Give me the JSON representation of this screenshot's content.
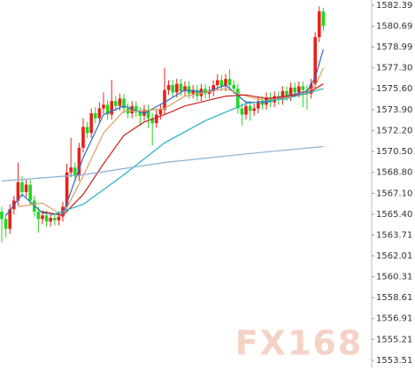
{
  "chart_data": {
    "type": "candlestick",
    "watermark": "FX168",
    "up_color": "#e8201a",
    "down_color": "#21d821",
    "xlim": [
      -0.43,
      90.87
    ],
    "ylim": [
      1552.93,
      1582.82
    ],
    "yticks": [
      1582.39,
      1580.69,
      1578.99,
      {
        "value": 1577.3,
        "label": "1577.30"
      },
      {
        "value": 1575.6,
        "label": "1575.60"
      },
      {
        "value": 1573.9,
        "label": "1573.90"
      },
      {
        "value": 1572.2,
        "label": "1572.20"
      },
      {
        "value": 1570.5,
        "label": "1570.50"
      },
      {
        "value": 1568.8,
        "label": "1568.80"
      },
      {
        "value": 1567.1,
        "label": "1567.10"
      },
      {
        "value": 1565.4,
        "label": "1565.40"
      },
      1563.71,
      1562.01,
      1560.31,
      1558.61,
      1556.91,
      1555.21,
      1553.51
    ],
    "open": [
      1565.6,
      1565.0,
      1564.2,
      1565.8,
      1566.5,
      1568.0,
      1567.2,
      1567.8,
      1566.5,
      1565.6,
      1565.0,
      1565.3,
      1564.8,
      1565.1,
      1564.9,
      1565.2,
      1566.0,
      1568.8,
      1569.2,
      1568.5,
      1570.8,
      1572.5,
      1572.0,
      1573.6,
      1573.2,
      1574.0,
      1574.3,
      1573.5,
      1574.6,
      1574.2,
      1574.8,
      1574.0,
      1573.6,
      1574.2,
      1573.7,
      1573.4,
      1573.9,
      1573.2,
      1572.8,
      1573.5,
      1573.9,
      1575.5,
      1575.9,
      1575.3,
      1576.0,
      1575.4,
      1575.8,
      1575.2,
      1575.5,
      1575.0,
      1575.6,
      1575.2,
      1575.4,
      1575.9,
      1576.3,
      1575.8,
      1576.4,
      1575.9,
      1575.6,
      1574.0,
      1573.5,
      1574.2,
      1573.8,
      1574.0,
      1574.6,
      1574.3,
      1574.9,
      1574.5,
      1575.0,
      1574.7,
      1575.4,
      1575.0,
      1575.7,
      1575.3,
      1575.8,
      1575.5,
      1575.2,
      1576.0,
      1579.8,
      1581.9
    ],
    "high": [
      1566.0,
      1565.4,
      1566.2,
      1566.9,
      1569.6,
      1568.5,
      1568.2,
      1568.2,
      1566.9,
      1566.0,
      1565.7,
      1565.7,
      1565.5,
      1565.5,
      1565.6,
      1566.4,
      1569.5,
      1571.6,
      1569.6,
      1571.2,
      1573.2,
      1572.9,
      1574.0,
      1574.1,
      1574.5,
      1575.3,
      1574.7,
      1576.3,
      1575.0,
      1575.2,
      1575.2,
      1574.4,
      1574.6,
      1574.6,
      1574.1,
      1574.3,
      1574.3,
      1573.6,
      1573.9,
      1574.3,
      1577.3,
      1576.3,
      1576.3,
      1576.4,
      1576.4,
      1576.2,
      1576.2,
      1575.9,
      1575.9,
      1576.0,
      1576.0,
      1575.8,
      1576.3,
      1576.8,
      1576.7,
      1576.8,
      1577.2,
      1576.3,
      1576.0,
      1574.4,
      1574.6,
      1574.6,
      1574.4,
      1575.0,
      1575.0,
      1575.3,
      1575.3,
      1575.4,
      1575.4,
      1575.8,
      1575.8,
      1576.1,
      1576.1,
      1576.2,
      1576.2,
      1575.9,
      1576.4,
      1580.2,
      1582.3,
      1582.2
    ],
    "low": [
      1563.1,
      1563.5,
      1563.8,
      1565.4,
      1566.1,
      1566.8,
      1566.8,
      1566.1,
      1565.2,
      1563.9,
      1564.6,
      1564.4,
      1564.4,
      1564.5,
      1564.5,
      1564.8,
      1565.6,
      1568.4,
      1568.1,
      1568.1,
      1570.4,
      1571.6,
      1571.6,
      1572.8,
      1572.8,
      1573.6,
      1573.1,
      1573.1,
      1573.8,
      1573.8,
      1573.6,
      1573.2,
      1573.2,
      1573.3,
      1572.6,
      1573.0,
      1572.4,
      1571.0,
      1572.4,
      1573.1,
      1573.5,
      1575.1,
      1574.9,
      1574.9,
      1575.0,
      1575.0,
      1574.8,
      1574.8,
      1574.6,
      1574.6,
      1574.8,
      1574.8,
      1575.0,
      1575.5,
      1575.4,
      1575.4,
      1575.5,
      1575.2,
      1573.6,
      1572.6,
      1573.1,
      1573.0,
      1573.4,
      1573.6,
      1573.9,
      1573.9,
      1574.1,
      1574.1,
      1574.3,
      1574.3,
      1574.6,
      1574.6,
      1574.9,
      1574.9,
      1574.1,
      1573.9,
      1574.8,
      1575.6,
      1579.4,
      1580.3
    ],
    "close": [
      1565.0,
      1564.2,
      1565.8,
      1566.5,
      1568.0,
      1567.2,
      1567.8,
      1566.5,
      1565.6,
      1565.0,
      1565.3,
      1564.8,
      1565.1,
      1564.9,
      1565.2,
      1566.0,
      1568.8,
      1569.2,
      1568.5,
      1570.8,
      1572.5,
      1572.0,
      1573.6,
      1573.2,
      1574.0,
      1574.3,
      1573.5,
      1574.6,
      1574.2,
      1574.8,
      1574.0,
      1573.6,
      1574.2,
      1573.7,
      1573.4,
      1573.9,
      1573.2,
      1572.8,
      1573.5,
      1573.9,
      1575.5,
      1575.9,
      1575.3,
      1576.0,
      1575.4,
      1575.8,
      1575.2,
      1575.5,
      1575.0,
      1575.6,
      1575.2,
      1575.4,
      1575.9,
      1576.3,
      1575.8,
      1576.4,
      1575.9,
      1575.6,
      1574.0,
      1573.5,
      1574.2,
      1573.8,
      1574.0,
      1574.6,
      1574.3,
      1574.9,
      1574.5,
      1575.0,
      1574.7,
      1575.4,
      1575.0,
      1575.7,
      1575.3,
      1575.8,
      1575.5,
      1575.2,
      1576.0,
      1579.8,
      1581.9,
      1580.7
    ],
    "lines": [
      {
        "color": "#3366cc",
        "x": [
          1,
          5,
          10,
          15,
          20,
          25,
          30,
          35,
          40,
          45,
          50,
          55,
          60,
          65,
          70,
          75,
          77,
          79
        ],
        "values": [
          1565.3,
          1567.0,
          1565.5,
          1565.4,
          1570.0,
          1573.5,
          1574.2,
          1573.6,
          1574.5,
          1575.5,
          1575.3,
          1575.9,
          1574.5,
          1574.5,
          1575.0,
          1575.4,
          1576.5,
          1578.8
        ]
      },
      {
        "color": "#d9a066",
        "x": [
          4,
          10,
          15,
          20,
          25,
          30,
          35,
          40,
          45,
          50,
          55,
          60,
          65,
          70,
          75,
          77,
          79
        ],
        "values": [
          1566.0,
          1566.3,
          1565.3,
          1568.5,
          1572.0,
          1573.8,
          1573.8,
          1574.0,
          1575.0,
          1575.3,
          1575.6,
          1575.0,
          1574.6,
          1574.9,
          1575.3,
          1575.8,
          1577.3
        ]
      },
      {
        "color": "#cc2222",
        "x": [
          10,
          15,
          20,
          25,
          30,
          35,
          40,
          45,
          50,
          55,
          60,
          65,
          70,
          75,
          79
        ],
        "values": [
          1565.6,
          1565.3,
          1567.0,
          1569.5,
          1571.8,
          1572.9,
          1573.5,
          1574.2,
          1574.6,
          1575.0,
          1575.1,
          1574.8,
          1575.0,
          1575.2,
          1576.0
        ]
      },
      {
        "color": "#22b5c5",
        "x": [
          12,
          20,
          30,
          40,
          50,
          60,
          70,
          79
        ],
        "values": [
          1565.3,
          1566.2,
          1568.6,
          1571.2,
          1573.0,
          1574.4,
          1574.8,
          1575.6
        ]
      },
      {
        "color": "#8ab0d8",
        "x": [
          0,
          20,
          40,
          60,
          79
        ],
        "values": [
          1568.1,
          1568.6,
          1569.6,
          1570.3,
          1570.9
        ]
      }
    ]
  }
}
